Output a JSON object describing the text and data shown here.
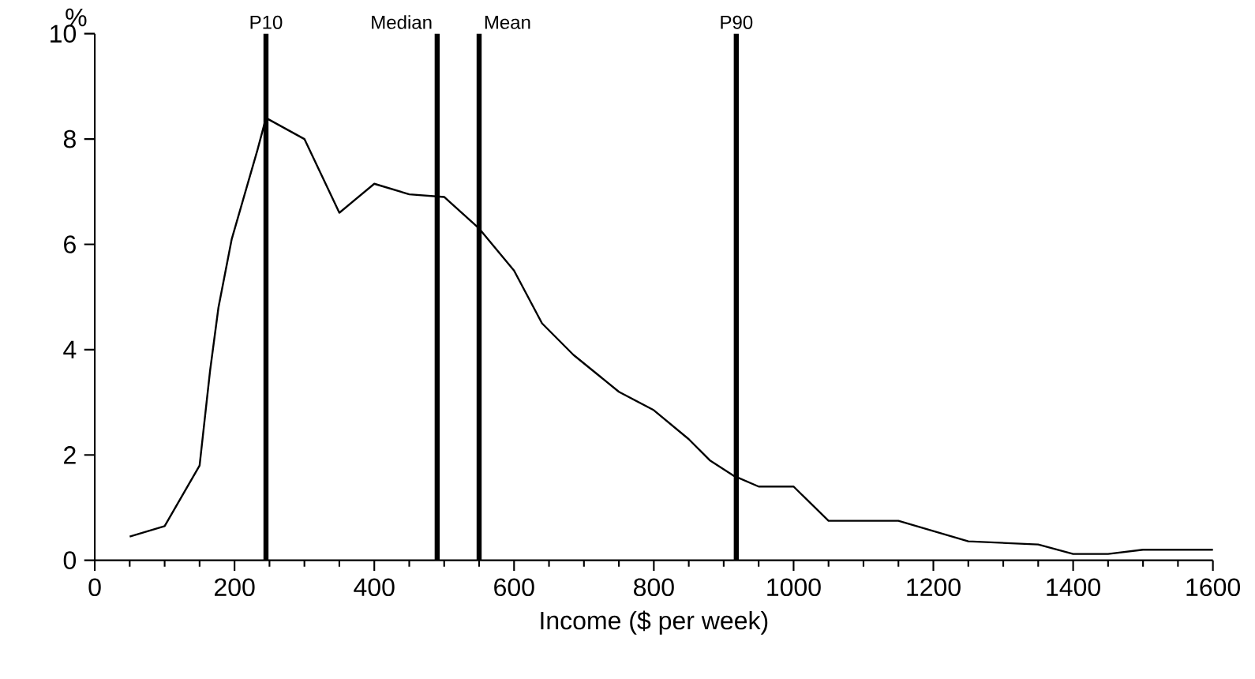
{
  "chart_data": {
    "type": "line",
    "xlabel": "Income ($ per week)",
    "ylabel": "%",
    "xlim": [
      0,
      1600
    ],
    "xticks": [
      0,
      200,
      400,
      600,
      800,
      1000,
      1200,
      1400,
      1600
    ],
    "ylim": [
      0,
      10
    ],
    "yticks": [
      0,
      2,
      4,
      6,
      8,
      10
    ],
    "grid": false,
    "marker": "none",
    "line_style": "solid",
    "series": [
      {
        "color": "#000000",
        "x": [
          50,
          100,
          150,
          165,
          177,
          196,
          233,
          245,
          300,
          350,
          400,
          450,
          500,
          550,
          600,
          640,
          685,
          750,
          800,
          850,
          880,
          915,
          950,
          1000,
          1050,
          1150,
          1250,
          1350,
          1400,
          1450,
          1500,
          1600
        ],
        "values": [
          0.45,
          0.65,
          1.8,
          3.6,
          4.8,
          6.1,
          7.8,
          8.4,
          8.0,
          6.6,
          7.15,
          6.95,
          6.9,
          6.3,
          5.5,
          4.5,
          3.9,
          3.2,
          2.85,
          2.3,
          1.9,
          1.6,
          1.4,
          1.4,
          0.75,
          0.75,
          0.36,
          0.3,
          0.12,
          0.12,
          0.2,
          0.2
        ]
      }
    ],
    "ref_lines": [
      {
        "axis": "x",
        "value": 245,
        "label": "P10",
        "color": "#000000"
      },
      {
        "axis": "x",
        "value": 490,
        "label": "Median",
        "color": "#000000"
      },
      {
        "axis": "x",
        "value": 550,
        "label": "Mean",
        "color": "#000000"
      },
      {
        "axis": "x",
        "value": 918,
        "label": "P90",
        "color": "#000000"
      }
    ]
  }
}
